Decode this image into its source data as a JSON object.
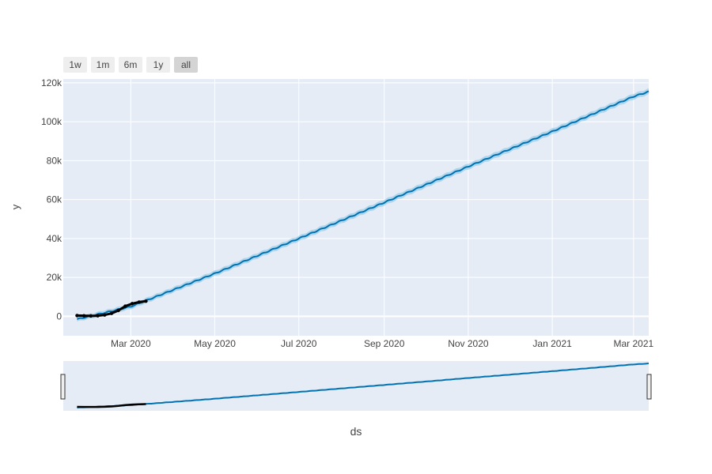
{
  "chart_data": {
    "type": "line",
    "xlabel": "ds",
    "ylabel": "y",
    "x_range": [
      "2020-01-12",
      "2021-03-12"
    ],
    "y_range": [
      -10000,
      122000
    ],
    "x_ticks": [
      {
        "date": "2020-03-01",
        "label": "Mar 2020"
      },
      {
        "date": "2020-05-01",
        "label": "May 2020"
      },
      {
        "date": "2020-07-01",
        "label": "Jul 2020"
      },
      {
        "date": "2020-09-01",
        "label": "Sep 2020"
      },
      {
        "date": "2020-11-01",
        "label": "Nov 2020"
      },
      {
        "date": "2021-01-01",
        "label": "Jan 2021"
      },
      {
        "date": "2021-03-01",
        "label": "Mar 2021"
      }
    ],
    "y_ticks": [
      {
        "value": 0,
        "label": "0"
      },
      {
        "value": 20000,
        "label": "20k"
      },
      {
        "value": 40000,
        "label": "40k"
      },
      {
        "value": 60000,
        "label": "60k"
      },
      {
        "value": 80000,
        "label": "80k"
      },
      {
        "value": 100000,
        "label": "100k"
      },
      {
        "value": 120000,
        "label": "120k"
      }
    ],
    "grid": true,
    "range_selector_buttons": [
      "1w",
      "1m",
      "6m",
      "1y",
      "all"
    ],
    "range_selector_active": "all",
    "range_slider": true,
    "colors": {
      "plot_bg": "#e5ecf6",
      "forecast_line": "#0072b2",
      "uncertainty_band": "#9ccfe8",
      "actual": "#000000",
      "grid": "#ffffff"
    },
    "series": [
      {
        "role": "forecast",
        "x": [
          "2020-01-22",
          "2020-03-01",
          "2020-05-01",
          "2020-07-01",
          "2020-09-01",
          "2020-11-01",
          "2021-01-01",
          "2021-03-01",
          "2021-03-12"
        ],
        "y": [
          -1500,
          5000,
          22000,
          40000,
          58500,
          77000,
          95000,
          113000,
          115500
        ],
        "lower": [
          -2700,
          3700,
          20600,
          38600,
          57000,
          75500,
          93500,
          111500,
          114000
        ],
        "upper": [
          -300,
          6300,
          23400,
          41400,
          60000,
          78500,
          96500,
          114500,
          117000
        ]
      },
      {
        "role": "actual",
        "x": [
          "2020-01-22",
          "2020-01-27",
          "2020-02-01",
          "2020-02-06",
          "2020-02-11",
          "2020-02-16",
          "2020-02-21",
          "2020-02-26",
          "2020-03-02",
          "2020-03-07",
          "2020-03-12"
        ],
        "y": [
          400,
          300,
          200,
          300,
          700,
          1500,
          3000,
          5200,
          6500,
          7300,
          7800
        ]
      }
    ]
  }
}
